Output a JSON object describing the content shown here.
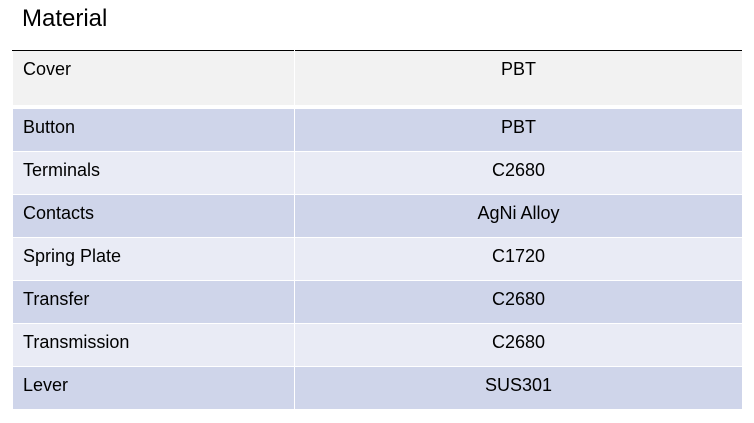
{
  "title": "Material",
  "rows": [
    {
      "part": "Cover",
      "material": "PBT"
    },
    {
      "part": "Button",
      "material": "PBT"
    },
    {
      "part": "Terminals",
      "material": "C2680"
    },
    {
      "part": "Contacts",
      "material": "AgNi Alloy"
    },
    {
      "part": "Spring Plate",
      "material": "C1720"
    },
    {
      "part": "Transfer",
      "material": "C2680"
    },
    {
      "part": "Transmission",
      "material": "C2680"
    },
    {
      "part": "Lever",
      "material": "SUS301"
    }
  ]
}
